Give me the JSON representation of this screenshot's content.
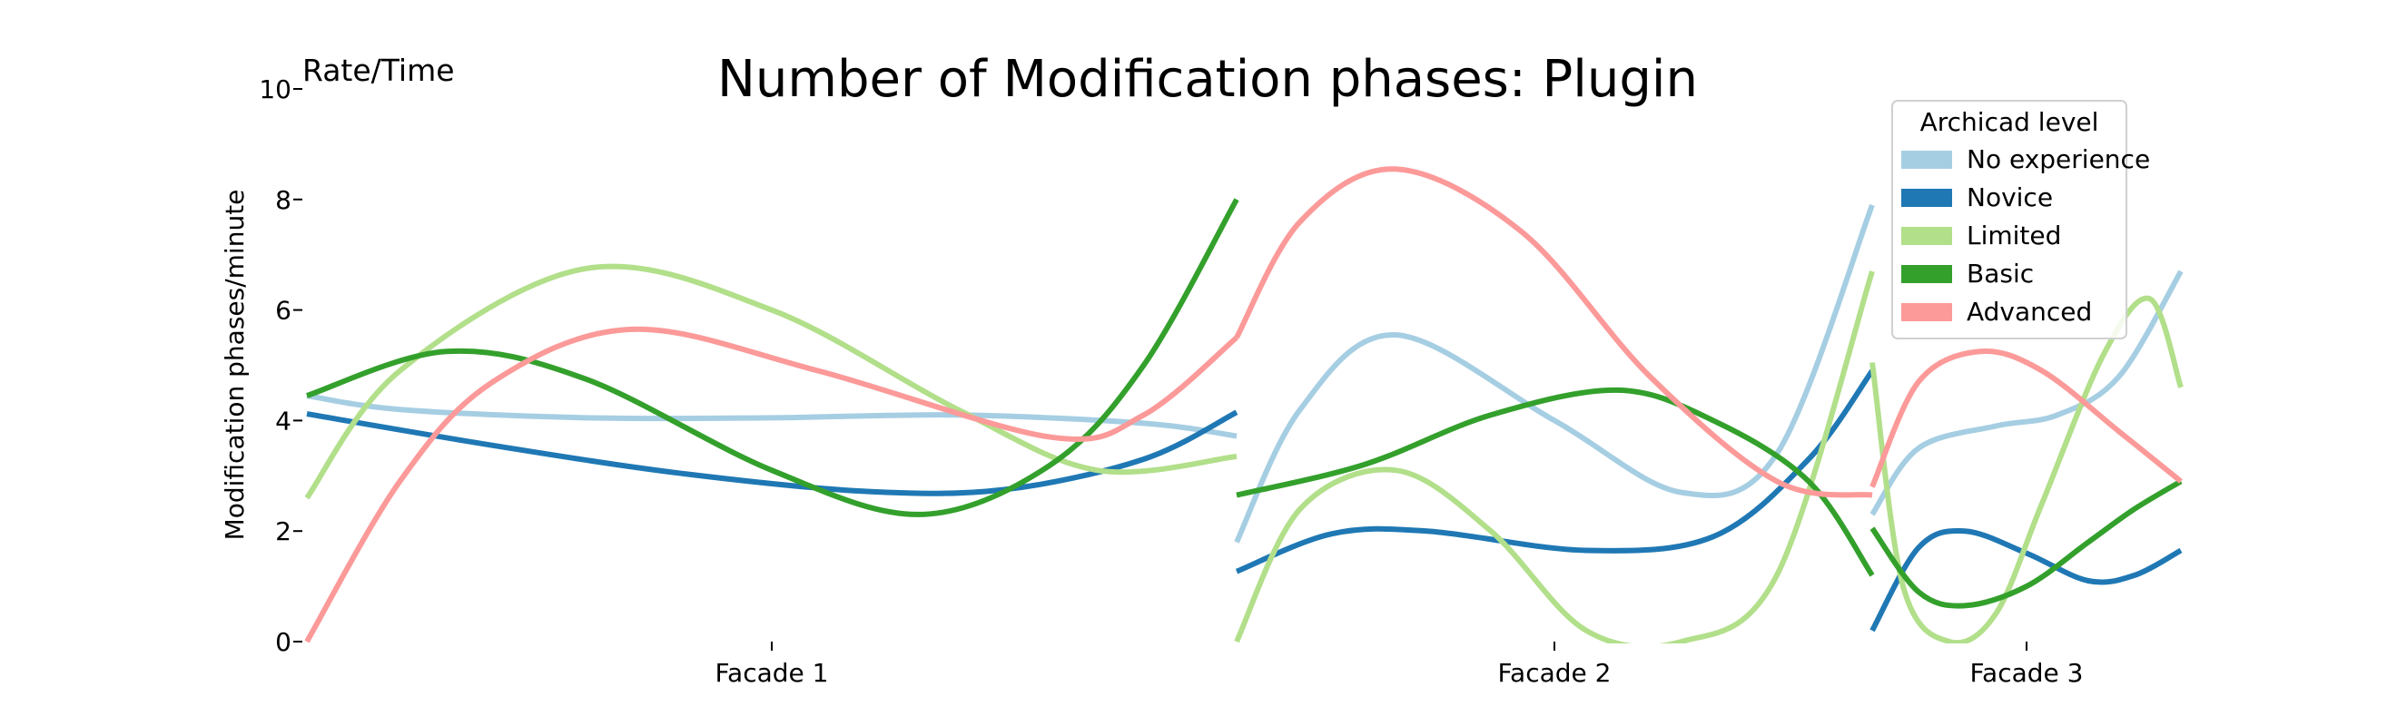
{
  "chart_data": {
    "type": "line",
    "title": "Number of Modification phases: Plugin",
    "corner_label": "Rate/Time",
    "ylabel": "Modification phases/minute",
    "xlabel": "",
    "ylim": [
      0,
      10
    ],
    "yticks": [
      0,
      2,
      4,
      6,
      8,
      10
    ],
    "grid": false,
    "legend": {
      "title": "Archicad level",
      "placement": "top-right",
      "entries": [
        "No experience",
        "Novice",
        "Limited",
        "Basic",
        "Advanced"
      ]
    },
    "segments": [
      {
        "label": "Facade 1",
        "x_range": [
          0,
          1
        ]
      },
      {
        "label": "Facade 2",
        "x_range": [
          0,
          1
        ]
      },
      {
        "label": "Facade 3",
        "x_range": [
          0,
          1
        ]
      }
    ],
    "series": [
      {
        "name": "No experience",
        "color": "#a6cee3",
        "segments": [
          {
            "x": [
              0,
              0.1,
              0.3,
              0.5,
              0.7,
              0.9,
              1.0
            ],
            "y": [
              4.45,
              4.2,
              4.05,
              4.05,
              4.1,
              3.95,
              3.72
            ]
          },
          {
            "x": [
              0,
              0.1,
              0.25,
              0.5,
              0.7,
              0.85,
              1.0
            ],
            "y": [
              1.8,
              4.2,
              5.55,
              4.0,
              2.7,
              3.4,
              7.9
            ]
          },
          {
            "x": [
              0,
              0.15,
              0.4,
              0.6,
              0.8,
              1.0
            ],
            "y": [
              2.3,
              3.5,
              3.9,
              4.1,
              4.8,
              6.7
            ]
          }
        ]
      },
      {
        "name": "Novice",
        "color": "#1f78b4",
        "segments": [
          {
            "x": [
              0,
              0.2,
              0.4,
              0.6,
              0.75,
              0.9,
              1.0
            ],
            "y": [
              4.12,
              3.55,
              3.05,
              2.72,
              2.75,
              3.3,
              4.15
            ]
          },
          {
            "x": [
              0,
              0.15,
              0.3,
              0.55,
              0.75,
              0.9,
              1.0
            ],
            "y": [
              1.27,
              1.95,
              2.0,
              1.65,
              1.9,
              3.3,
              4.9
            ]
          },
          {
            "x": [
              0,
              0.15,
              0.3,
              0.5,
              0.7,
              0.85,
              1.0
            ],
            "y": [
              0.2,
              1.7,
              2.0,
              1.6,
              1.1,
              1.2,
              1.65
            ]
          }
        ]
      },
      {
        "name": "Limited",
        "color": "#b2df8a",
        "segments": [
          {
            "x": [
              0,
              0.1,
              0.3,
              0.5,
              0.7,
              0.85,
              1.0
            ],
            "y": [
              2.6,
              4.9,
              6.75,
              6.0,
              4.2,
              3.1,
              3.35
            ]
          },
          {
            "x": [
              0,
              0.1,
              0.25,
              0.4,
              0.55,
              0.7,
              0.85,
              1.0
            ],
            "y": [
              0.0,
              2.4,
              3.1,
              2.0,
              0.2,
              0.0,
              1.2,
              6.7
            ]
          },
          {
            "x": [
              0,
              0.1,
              0.25,
              0.4,
              0.55,
              0.75,
              0.9,
              1.0
            ],
            "y": [
              5.05,
              1.0,
              0.0,
              0.5,
              2.5,
              5.2,
              6.2,
              4.6
            ]
          }
        ]
      },
      {
        "name": "Basic",
        "color": "#33a02c",
        "segments": [
          {
            "x": [
              0,
              0.15,
              0.3,
              0.5,
              0.66,
              0.8,
              0.9,
              1.0
            ],
            "y": [
              4.45,
              5.25,
              4.75,
              3.1,
              2.3,
              3.2,
              5.0,
              8.0
            ]
          },
          {
            "x": [
              0,
              0.2,
              0.4,
              0.6,
              0.75,
              0.9,
              1.0
            ],
            "y": [
              2.65,
              3.2,
              4.1,
              4.55,
              4.0,
              2.9,
              1.2
            ]
          },
          {
            "x": [
              0,
              0.15,
              0.3,
              0.5,
              0.7,
              0.85,
              1.0
            ],
            "y": [
              2.05,
              0.9,
              0.65,
              1.0,
              1.8,
              2.4,
              2.9
            ]
          }
        ]
      },
      {
        "name": "Advanced",
        "color": "#fb9a99",
        "segments": [
          {
            "x": [
              0,
              0.1,
              0.2,
              0.35,
              0.55,
              0.8,
              0.9,
              1.0
            ],
            "y": [
              0.0,
              2.9,
              4.7,
              5.65,
              4.9,
              3.7,
              4.1,
              5.5
            ]
          },
          {
            "x": [
              0,
              0.1,
              0.25,
              0.45,
              0.65,
              0.85,
              1.0
            ],
            "y": [
              5.5,
              7.6,
              8.55,
              7.4,
              4.8,
              2.9,
              2.65
            ]
          },
          {
            "x": [
              0,
              0.15,
              0.35,
              0.55,
              0.8,
              1.0
            ],
            "y": [
              2.8,
              4.7,
              5.25,
              4.9,
              3.8,
              2.9
            ]
          }
        ]
      }
    ]
  }
}
